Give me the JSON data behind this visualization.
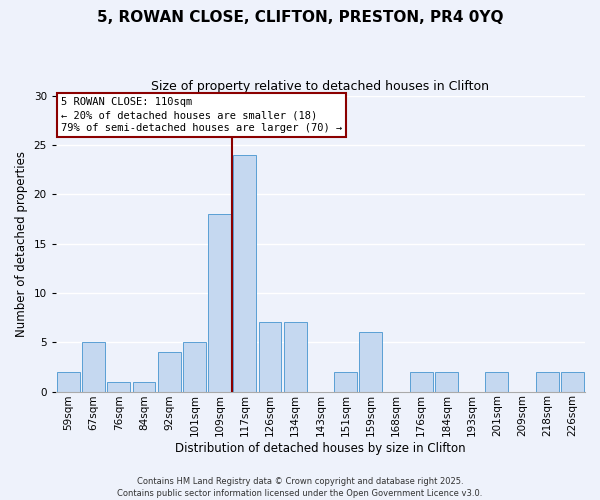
{
  "title": "5, ROWAN CLOSE, CLIFTON, PRESTON, PR4 0YQ",
  "subtitle": "Size of property relative to detached houses in Clifton",
  "xlabel": "Distribution of detached houses by size in Clifton",
  "ylabel": "Number of detached properties",
  "categories": [
    "59sqm",
    "67sqm",
    "76sqm",
    "84sqm",
    "92sqm",
    "101sqm",
    "109sqm",
    "117sqm",
    "126sqm",
    "134sqm",
    "143sqm",
    "151sqm",
    "159sqm",
    "168sqm",
    "176sqm",
    "184sqm",
    "193sqm",
    "201sqm",
    "209sqm",
    "218sqm",
    "226sqm"
  ],
  "values": [
    2,
    5,
    1,
    1,
    4,
    5,
    18,
    24,
    7,
    7,
    0,
    2,
    6,
    0,
    2,
    2,
    0,
    2,
    0,
    2,
    2
  ],
  "bar_color": "#c5d8f0",
  "bar_edge_color": "#5a9fd4",
  "highlight_index": 6,
  "highlight_line_color": "#8b0000",
  "ylim": [
    0,
    30
  ],
  "yticks": [
    0,
    5,
    10,
    15,
    20,
    25,
    30
  ],
  "annotation_title": "5 ROWAN CLOSE: 110sqm",
  "annotation_line1": "← 20% of detached houses are smaller (18)",
  "annotation_line2": "79% of semi-detached houses are larger (70) →",
  "annotation_box_color": "#8b0000",
  "footer_line1": "Contains HM Land Registry data © Crown copyright and database right 2025.",
  "footer_line2": "Contains public sector information licensed under the Open Government Licence v3.0.",
  "background_color": "#eef2fb",
  "grid_color": "#ffffff",
  "title_fontsize": 11,
  "subtitle_fontsize": 9,
  "axis_label_fontsize": 8.5,
  "tick_fontsize": 7.5,
  "footer_fontsize": 6,
  "annotation_fontsize": 7.5
}
